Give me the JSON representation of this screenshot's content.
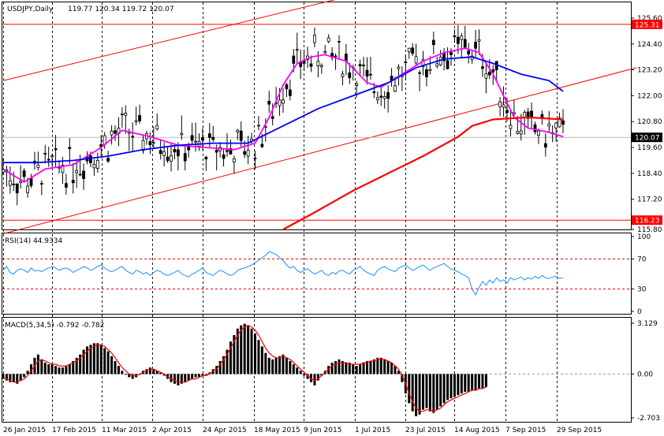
{
  "chart_data": [
    {
      "type": "candlestick",
      "title": "USDJPY,Daily",
      "ohlc_label": "119.77 120.34 119.72 120.07",
      "last_price": 120.07,
      "price_levels": [
        125.31,
        116.23
      ],
      "ylim": [
        115.8,
        126.0
      ],
      "yticks": [
        "125.60",
        "124.40",
        "123.20",
        "122.00",
        "120.80",
        "119.60",
        "118.40",
        "117.20",
        "115.80"
      ],
      "x_labels": [
        "26 Jan 2015",
        "17 Feb 2015",
        "11 Mar 2015",
        "2 Apr 2015",
        "24 Apr 2015",
        "18 May 2015",
        "9 Jun 2015",
        "1 Jul 2015",
        "23 Jul 2015",
        "14 Aug 2015",
        "7 Sep 2015",
        "29 Sep 2015"
      ],
      "series": [
        {
          "name": "",
          "color": "#ff00ff",
          "points": [
            [
              0,
              118.6
            ],
            [
              6,
              118.0
            ],
            [
              12,
              118.6
            ],
            [
              20,
              118.8
            ],
            [
              28,
              119.6
            ],
            [
              34,
              120.4
            ],
            [
              42,
              120.1
            ],
            [
              50,
              119.7
            ],
            [
              58,
              119.6
            ],
            [
              66,
              119.5
            ],
            [
              72,
              119.8
            ],
            [
              76,
              121.0
            ],
            [
              80,
              122.5
            ],
            [
              84,
              123.5
            ],
            [
              88,
              123.8
            ],
            [
              92,
              123.9
            ],
            [
              98,
              123.6
            ],
            [
              104,
              122.6
            ],
            [
              108,
              122.4
            ],
            [
              114,
              123.0
            ],
            [
              120,
              123.6
            ],
            [
              126,
              124.0
            ],
            [
              132,
              124.2
            ],
            [
              136,
              124.0
            ],
            [
              140,
              123.0
            ],
            [
              146,
              121.0
            ],
            [
              150,
              120.5
            ],
            [
              156,
              120.3
            ],
            [
              160,
              120.1
            ]
          ]
        },
        {
          "name": "",
          "color": "#0000ff",
          "points": [
            [
              0,
              118.9
            ],
            [
              10,
              118.9
            ],
            [
              20,
              119.0
            ],
            [
              30,
              119.2
            ],
            [
              40,
              119.5
            ],
            [
              50,
              119.7
            ],
            [
              60,
              119.8
            ],
            [
              70,
              119.8
            ],
            [
              80,
              120.6
            ],
            [
              90,
              121.4
            ],
            [
              100,
              122.0
            ],
            [
              110,
              122.6
            ],
            [
              118,
              123.3
            ],
            [
              126,
              123.7
            ],
            [
              134,
              123.8
            ],
            [
              140,
              123.5
            ],
            [
              148,
              123.0
            ],
            [
              156,
              122.7
            ],
            [
              160,
              122.2
            ]
          ]
        },
        {
          "name": "",
          "color": "#ff0000",
          "points": [
            [
              80,
              115.8
            ],
            [
              88,
              116.5
            ],
            [
              100,
              117.6
            ],
            [
              110,
              118.4
            ],
            [
              120,
              119.2
            ],
            [
              130,
              120.1
            ],
            [
              134,
              120.6
            ],
            [
              140,
              120.9
            ],
            [
              150,
              121.0
            ],
            [
              160,
              120.9
            ]
          ]
        }
      ],
      "channel_lines": [
        {
          "color": "#ff0000",
          "from": [
            0,
            122.7
          ],
          "to": [
            96,
            126.5
          ]
        },
        {
          "color": "#ff0000",
          "from": [
            0,
            115.6
          ],
          "to": [
            181,
            123.3
          ]
        }
      ]
    },
    {
      "type": "line",
      "title": "RSI(14) 44.9334",
      "ylim": [
        0,
        100
      ],
      "yticks": [
        "100",
        "70",
        "30",
        "0"
      ],
      "levels": [
        70,
        30
      ],
      "series": [
        {
          "name": "",
          "color": "#1e90ff",
          "values": [
            55,
            60,
            52,
            50,
            55,
            57,
            55,
            52,
            58,
            54,
            55,
            53,
            56,
            58,
            60,
            58,
            55,
            57,
            58,
            56,
            52,
            55,
            57,
            60,
            58,
            55,
            57,
            60,
            62,
            58,
            55,
            53,
            55,
            58,
            60,
            55,
            52,
            50,
            55,
            53,
            50,
            52,
            48,
            52,
            55,
            53,
            50,
            48,
            50,
            52,
            55,
            50,
            48,
            46,
            50,
            52,
            55,
            58,
            52,
            50,
            48,
            52,
            55,
            53,
            50,
            48,
            50,
            55,
            57,
            58,
            60,
            62,
            65,
            68,
            72,
            75,
            80,
            78,
            76,
            72,
            68,
            62,
            58,
            60,
            55,
            52,
            55,
            57,
            53,
            50,
            52,
            55,
            50,
            48,
            52,
            50,
            54,
            55,
            52,
            50,
            55,
            57,
            60,
            55,
            52,
            50,
            48,
            55,
            58,
            60,
            57,
            55,
            53,
            58,
            60,
            62,
            58,
            55,
            57,
            60,
            62,
            58,
            55,
            58,
            60,
            62,
            64,
            60,
            57,
            55,
            53,
            50,
            48,
            45,
            30,
            22,
            32,
            40,
            35,
            42,
            38,
            45,
            40,
            42,
            38,
            45,
            42,
            44,
            46,
            42,
            45,
            43,
            47,
            44,
            48,
            45,
            44,
            46,
            47,
            44,
            45
          ]
        }
      ]
    },
    {
      "type": "bar",
      "title": "MACD(5,34,5) -0.792 -0.782",
      "ylim": [
        -2.703,
        3.129
      ],
      "yticks": [
        "3.129",
        "0.00",
        "-2.703"
      ],
      "series": [
        {
          "name": "",
          "color": "#000000",
          "values": [
            -0.3,
            -0.4,
            -0.5,
            -0.5,
            -0.6,
            -0.4,
            -0.2,
            0.2,
            0.6,
            1.0,
            1.2,
            0.9,
            0.7,
            0.6,
            0.6,
            0.5,
            0.4,
            0.4,
            0.5,
            0.6,
            0.8,
            1.0,
            1.2,
            1.5,
            1.7,
            1.8,
            1.9,
            1.9,
            1.8,
            1.6,
            1.4,
            1.1,
            0.8,
            0.5,
            0.2,
            0.0,
            -0.2,
            -0.3,
            -0.2,
            0.0,
            0.2,
            0.3,
            0.4,
            0.3,
            0.2,
            0.1,
            -0.1,
            -0.3,
            -0.5,
            -0.6,
            -0.7,
            -0.6,
            -0.5,
            -0.4,
            -0.3,
            -0.2,
            -0.2,
            -0.1,
            0.0,
            0.1,
            0.3,
            0.5,
            0.8,
            1.1,
            1.5,
            2.0,
            2.4,
            2.8,
            3.0,
            3.1,
            3.0,
            2.8,
            2.5,
            2.1,
            1.7,
            1.3,
            1.0,
            0.9,
            1.0,
            1.1,
            1.2,
            1.0,
            0.8,
            0.6,
            0.4,
            0.2,
            -0.1,
            -0.3,
            -0.5,
            -0.7,
            -0.4,
            -0.1,
            0.2,
            0.5,
            0.7,
            0.8,
            0.9,
            0.8,
            0.7,
            0.7,
            0.6,
            0.5,
            0.6,
            0.7,
            0.8,
            0.8,
            0.9,
            1.0,
            1.0,
            0.9,
            0.8,
            0.7,
            0.5,
            0.2,
            -0.5,
            -1.2,
            -1.8,
            -2.3,
            -2.6,
            -2.5,
            -2.2,
            -2.1,
            -2.3,
            -2.4,
            -2.2,
            -2.0,
            -1.8,
            -1.6,
            -1.5,
            -1.4,
            -1.3,
            -1.2,
            -1.1,
            -1.1,
            -1.0,
            -1.0,
            -0.9,
            -0.9,
            -0.8
          ]
        },
        {
          "name": "",
          "color": "#ff0000",
          "values": [
            -0.2,
            -0.3,
            -0.4,
            -0.5,
            -0.5,
            -0.4,
            -0.3,
            -0.1,
            0.2,
            0.5,
            0.8,
            0.9,
            0.8,
            0.7,
            0.6,
            0.6,
            0.5,
            0.5,
            0.5,
            0.6,
            0.7,
            0.8,
            1.0,
            1.2,
            1.4,
            1.6,
            1.7,
            1.8,
            1.8,
            1.7,
            1.5,
            1.3,
            1.0,
            0.7,
            0.4,
            0.2,
            0.0,
            -0.1,
            -0.1,
            0.0,
            0.1,
            0.2,
            0.3,
            0.3,
            0.2,
            0.1,
            0.0,
            -0.2,
            -0.3,
            -0.4,
            -0.5,
            -0.5,
            -0.5,
            -0.4,
            -0.3,
            -0.3,
            -0.2,
            -0.1,
            -0.1,
            0.0,
            0.2,
            0.3,
            0.6,
            0.9,
            1.2,
            1.6,
            2.0,
            2.4,
            2.7,
            2.9,
            3.0,
            2.9,
            2.7,
            2.4,
            2.0,
            1.6,
            1.3,
            1.1,
            1.0,
            1.0,
            1.1,
            1.0,
            0.9,
            0.7,
            0.5,
            0.3,
            0.1,
            -0.1,
            -0.3,
            -0.4,
            -0.3,
            -0.1,
            0.1,
            0.3,
            0.5,
            0.6,
            0.7,
            0.7,
            0.7,
            0.6,
            0.6,
            0.6,
            0.6,
            0.7,
            0.7,
            0.8,
            0.8,
            0.9,
            0.9,
            0.9,
            0.8,
            0.7,
            0.5,
            0.3,
            -0.1,
            -0.6,
            -1.2,
            -1.7,
            -2.1,
            -2.3,
            -2.3,
            -2.2,
            -2.2,
            -2.3,
            -2.2,
            -2.1,
            -1.9,
            -1.7,
            -1.6,
            -1.5,
            -1.4,
            -1.3,
            -1.2,
            -1.1,
            -1.0,
            -1.0,
            -0.9,
            -0.9,
            -0.8
          ]
        }
      ]
    }
  ]
}
